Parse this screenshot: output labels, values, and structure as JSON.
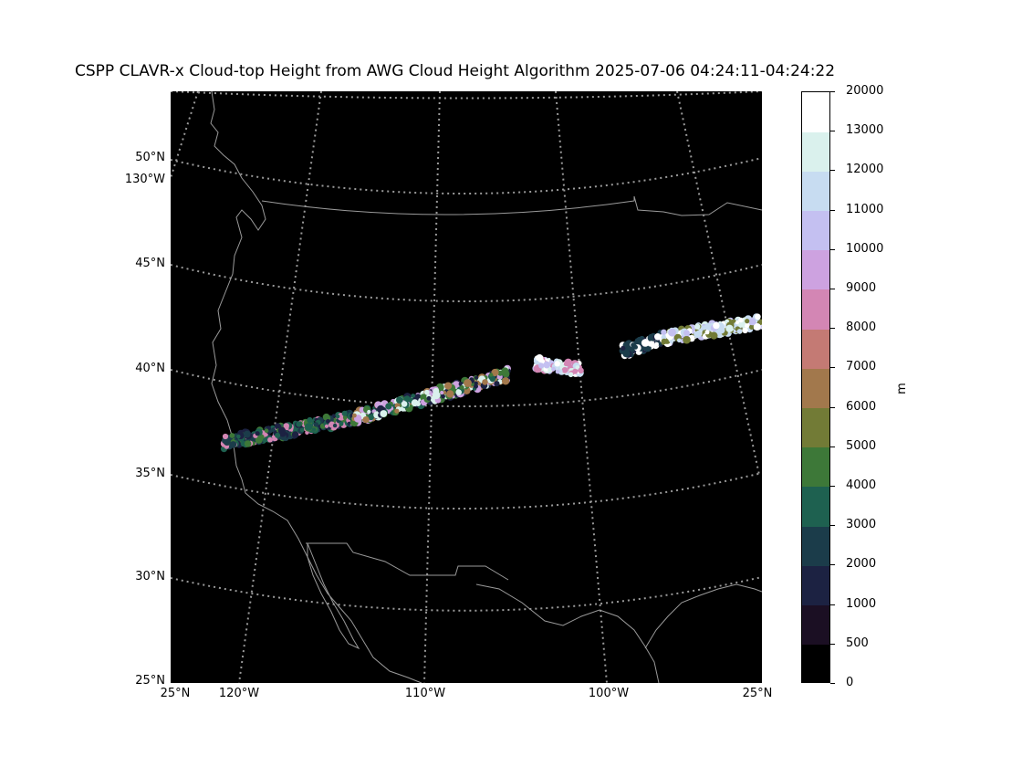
{
  "title": "CSPP CLAVR-x Cloud-top Height from AWG Cloud Height Algorithm 2025-07-06 04:24:11-04:24:22",
  "map": {
    "background": "#000000",
    "coastline_color": "#9a9a9a",
    "gridline_color": "#9a9a9a",
    "lat_labels": [
      {
        "text": "50°N",
        "top": 165
      },
      {
        "text": "130°W",
        "top": 189
      },
      {
        "text": "45°N",
        "top": 281
      },
      {
        "text": "40°N",
        "top": 396
      },
      {
        "text": "35°N",
        "top": 511
      },
      {
        "text": "30°N",
        "top": 624
      },
      {
        "text": "25°N",
        "top": 738
      }
    ],
    "lon_labels": [
      {
        "text": "25°N",
        "left": 162
      },
      {
        "text": "120°W",
        "left": 232
      },
      {
        "text": "110°W",
        "left": 436
      },
      {
        "text": "100°W",
        "left": 637
      },
      {
        "text": "25°N",
        "left": 800
      }
    ]
  },
  "colorbar": {
    "unit": "m",
    "ticks": [
      "0",
      "500",
      "1000",
      "2000",
      "3000",
      "4000",
      "5000",
      "6000",
      "7000",
      "8000",
      "9000",
      "10000",
      "11000",
      "12000",
      "13000",
      "20000"
    ],
    "colors": [
      "#000000",
      "#1b0f23",
      "#1c2242",
      "#1b3c4a",
      "#1e6150",
      "#3d7838",
      "#727b36",
      "#a2784c",
      "#c47a74",
      "#d386b4",
      "#cda2e0",
      "#c4c0f1",
      "#c7dcf1",
      "#daf1ed",
      "#ffffff"
    ]
  }
}
